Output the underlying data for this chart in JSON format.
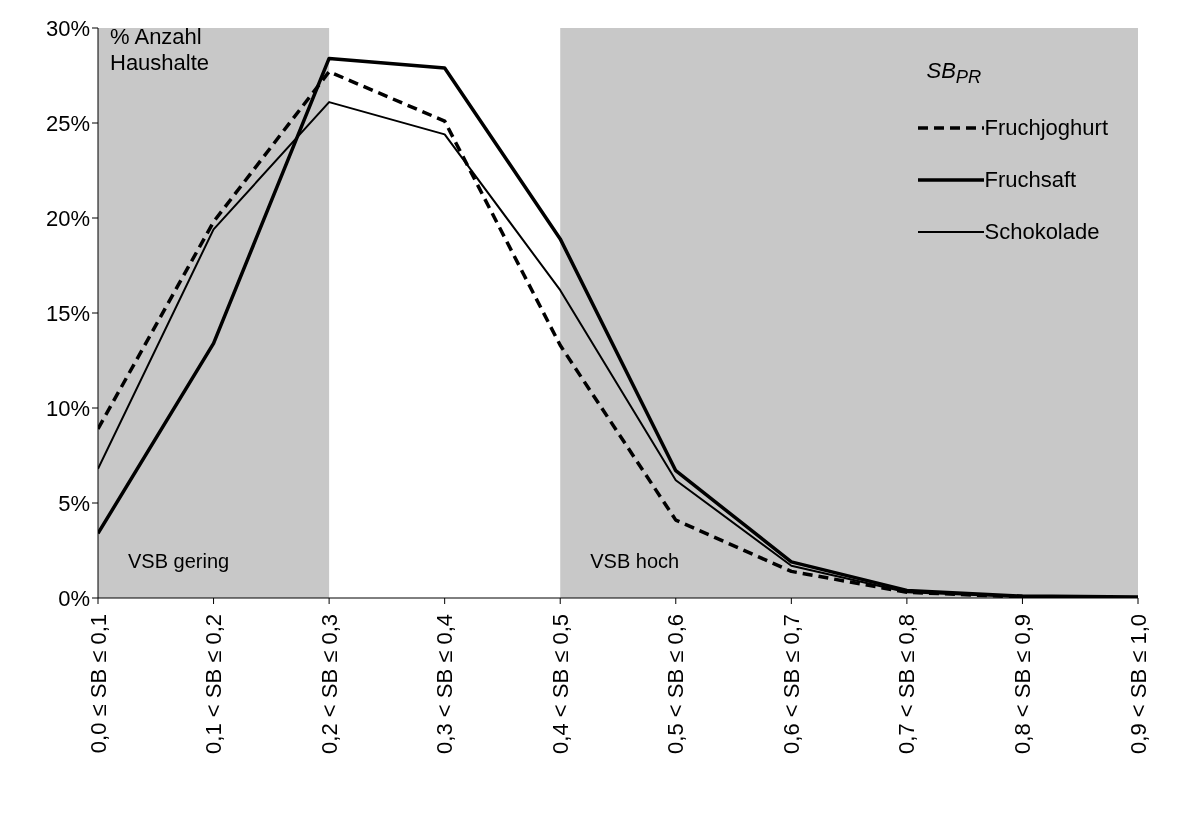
{
  "chart_data": {
    "type": "line",
    "ylabel": "% Anzahl Haushalte",
    "legend_title": "SB$_{PR}$",
    "categories": [
      "0,0 ≤ SB ≤ 0,1",
      "0,1 < SB ≤ 0,2",
      "0,2 < SB ≤ 0,3",
      "0,3 < SB ≤ 0,4",
      "0,4 < SB ≤ 0,5",
      "0,5 < SB ≤ 0,6",
      "0,6 < SB ≤ 0,7",
      "0,7 < SB ≤ 0,8",
      "0,8 < SB ≤ 0,9",
      "0,9 < SB ≤ 1,0"
    ],
    "series": [
      {
        "name": "Fruchjoghurt",
        "color": "#000000",
        "line_style": "dashed",
        "values": [
          8.9,
          19.8,
          27.7,
          25.1,
          13.3,
          4.1,
          1.4,
          0.3,
          0.05,
          0
        ]
      },
      {
        "name": "Fruchsaft",
        "color": "#000000",
        "line_style": "solid",
        "values": [
          3.4,
          13.4,
          28.4,
          27.9,
          18.9,
          6.7,
          1.9,
          0.4,
          0.1,
          0.05
        ]
      },
      {
        "name": "Schokolade",
        "color": "#000000",
        "line_style": "solid",
        "values": [
          6.8,
          19.4,
          26.1,
          24.4,
          16.2,
          6.2,
          1.7,
          0.3,
          0.05,
          0
        ]
      }
    ],
    "ylim": [
      0,
      30
    ],
    "yticks": [
      {
        "value": 0,
        "label": "0%"
      },
      {
        "value": 5,
        "label": "5%"
      },
      {
        "value": 10,
        "label": "10%"
      },
      {
        "value": 15,
        "label": "15%"
      },
      {
        "value": 20,
        "label": "20%"
      },
      {
        "value": 25,
        "label": "25%"
      },
      {
        "value": 30,
        "label": "30%"
      }
    ],
    "bands": [
      {
        "axis": "x",
        "from": "0,0 ≤ SB ≤ 0,1",
        "to": "0,2 < SB ≤ 0,3",
        "label": "VSB gering",
        "color": "#c8c8c8"
      },
      {
        "axis": "x",
        "from": "0,4 < SB ≤ 0,5",
        "to": "0,9 < SB ≤ 1,0",
        "label": "VSB hoch",
        "color": "#c8c8c8"
      }
    ],
    "legend": "top right",
    "marker": "none",
    "grid": false
  }
}
